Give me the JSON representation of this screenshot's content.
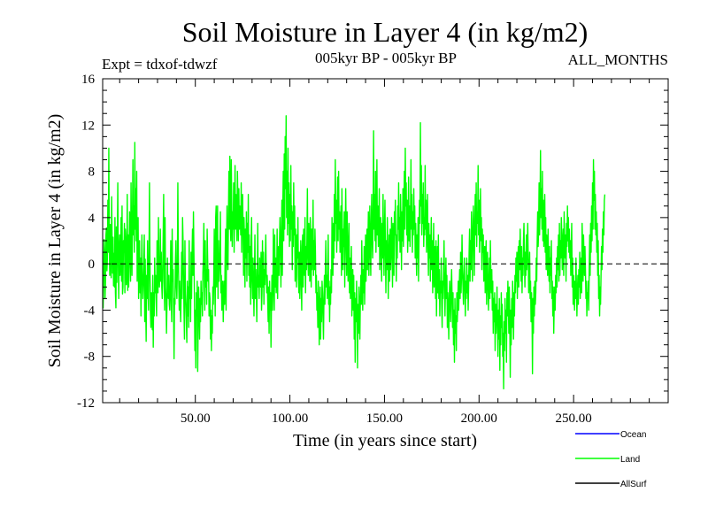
{
  "chart_data": {
    "type": "line",
    "title": "Soil Moisture in Layer 4 (in kg/m2)",
    "subtitle_left": "Expt = tdxof-tdwzf",
    "subtitle_center": "005kyr BP - 005kyr BP",
    "subtitle_right": "ALL_MONTHS",
    "xlabel": "Time (in years since start)",
    "ylabel": "Soil Moisture in Layer 4 (in kg/m2)",
    "xlim": [
      1,
      300
    ],
    "ylim": [
      -12,
      16
    ],
    "x_ticks": [
      50,
      100,
      150,
      200,
      250
    ],
    "x_tick_labels": [
      "50.00",
      "100.00",
      "150.00",
      "200.00",
      "250.00"
    ],
    "y_ticks": [
      -12,
      -8,
      -4,
      0,
      4,
      8,
      12,
      16
    ],
    "y_tick_labels": [
      "-12",
      "-8",
      "-4",
      "0",
      "4",
      "8",
      "12",
      "16"
    ],
    "zero_line": "dashed",
    "grid": false,
    "legend_position": "bottom-right",
    "series": [
      {
        "name": "Ocean",
        "color": "#0000ff",
        "values": []
      },
      {
        "name": "Land",
        "color": "#00ff00",
        "x_start": 1,
        "x_step": 0.25,
        "values": [
          -2.0,
          -3.8,
          -1.0,
          2.1,
          1.2,
          -3.0,
          -1.5,
          2.5,
          3.1,
          -0.6,
          0.5,
          5.5,
          1.0,
          10.0,
          2.0,
          -1.0,
          3.4,
          1.5,
          -1.2,
          5.8,
          2.0,
          -0.8,
          2.3,
          -1.9,
          0.9,
          -2.0,
          4.0,
          -2.5,
          -3.8,
          3.2,
          -1.6,
          1.5,
          7.0,
          0.4,
          -3.0,
          1.5,
          2.5,
          -1.0,
          0.5,
          4.0,
          -1.5,
          5.0,
          -2.6,
          -2.0,
          2.0,
          1.0,
          3.5,
          -2.5,
          3.0,
          2.2,
          -1.8,
          -1.0,
          6.0,
          -2.3,
          2.5,
          -2.0,
          1.2,
          4.5,
          0.5,
          -1.5,
          7.0,
          2.0,
          -1.0,
          4.0,
          9.0,
          2.5,
          5.0,
          1.0,
          10.5,
          3.0,
          6.5,
          2.0,
          8.0,
          -1.5,
          3.0,
          4.0,
          -3.0,
          1.0,
          2.0,
          -2.5,
          0.5,
          -4.5,
          -1.0,
          2.5,
          -1.0,
          -3.0,
          -1.8,
          -0.4,
          2.5,
          -5.0,
          0.4,
          -3.5,
          -6.7,
          -1.0,
          -3.0,
          2.0,
          -2.0,
          -4.0,
          0.5,
          7.0,
          0.4,
          -4.0,
          -5.5,
          -2.5,
          -3.5,
          -5.7,
          -1.0,
          -7.2,
          -2.5,
          -4.5,
          0.5,
          -2.5,
          -1.0,
          -3.0,
          -4.5,
          2.0,
          -1.5,
          -2.5,
          4.0,
          -0.5,
          -2.0,
          -1.0,
          3.0,
          -1.5,
          1.0,
          -2.0,
          -3.0,
          -1.0,
          2.5,
          6.0,
          -1.5,
          -4.0,
          4.0,
          -2.0,
          -3.0,
          -6.0,
          -3.5,
          0.5,
          -2.5,
          -3.0,
          -1.0,
          -3.5,
          -4.0,
          -2.0,
          2.0,
          -3.0,
          -5.0,
          3.0,
          -1.5,
          -0.5,
          -4.0,
          -8.2,
          -3.0,
          -3.5,
          0.5,
          2.0,
          -2.0,
          -3.0,
          -0.5,
          7.0,
          1.0,
          -2.0,
          -4.0,
          -1.5,
          -3.5,
          -5.0,
          -2.5,
          1.0,
          -3.0,
          4.0,
          2.0,
          -1.0,
          -4.0,
          -6.5,
          2.0,
          -2.5,
          -3.5,
          -5.0,
          -6.8,
          -1.5,
          -4.5,
          -2.0,
          -5.5,
          2.0,
          -3.0,
          -1.5,
          -5.0,
          1.0,
          -3.0,
          0.8,
          3.0,
          -1.0,
          4.5,
          1.0,
          -2.5,
          -7.5,
          -4.0,
          -9.0,
          -2.5,
          -4.5,
          -1.5,
          -9.3,
          -5.0,
          -2.0,
          -4.0,
          -6.5,
          -3.0,
          -5.0,
          -1.5,
          -3.5,
          -2.5,
          -4.5,
          -0.8,
          0.5,
          3.5,
          -1.5,
          -4.0,
          2.0,
          -2.0,
          -0.5,
          -3.5,
          3.0,
          0.5,
          -1.5,
          -0.5,
          -4.5,
          -2.5,
          -3.0,
          -6.5,
          -4.0,
          -7.5,
          -4.5,
          -6.0,
          -2.0,
          -3.5,
          -1.2,
          3.0,
          -1.0,
          -4.5,
          4.0,
          5.0,
          -2.0,
          2.0,
          5.0,
          -3.0,
          2.0,
          -1.5,
          -0.5,
          1.0,
          4.5,
          -2.5,
          -1.0,
          -4.0,
          -2.5,
          -1.5,
          -5.0,
          -3.0,
          -1.5,
          -3.5,
          0.5,
          3.0,
          -4.0,
          1.5,
          5.0,
          0.5,
          -0.5,
          4.0,
          8.0,
          3.0,
          9.3,
          4.0,
          2.0,
          9.0,
          5.0,
          1.5,
          4.5,
          3.0,
          7.0,
          1.0,
          4.0,
          8.5,
          3.0,
          6.0,
          4.5,
          2.0,
          8.0,
          5.5,
          2.0,
          6.5,
          3.0,
          5.0,
          4.0,
          2.5,
          7.0,
          1.0,
          5.5,
          6.0,
          2.5,
          -1.0,
          4.0,
          2.0,
          -2.0,
          3.0,
          0.5,
          4.5,
          -1.5,
          3.5,
          1.0,
          6.0,
          -1.0,
          2.5,
          -2.0,
          1.5,
          -3.5,
          2.0,
          4.0,
          -1.5,
          -3.0,
          0.5,
          -2.0,
          -4.5,
          -1.0,
          2.5,
          -3.0,
          -0.5,
          -2.5,
          -5.0,
          -1.0,
          3.5,
          -2.0,
          -1.0,
          -3.0,
          0.5,
          -1.5,
          -2.0,
          1.0,
          -4.0,
          -2.5,
          2.0,
          -2.0,
          1.0,
          -3.5,
          -0.5,
          -1.8,
          0.5,
          2.5,
          -1.0,
          -2.5,
          -1.0,
          -3.0,
          -5.0,
          -2.0,
          -6.0,
          -1.5,
          -4.0,
          -2.5,
          -7.2,
          -3.5,
          -1.0,
          -4.0,
          -2.5,
          3.0,
          -1.0,
          -4.0,
          2.5,
          -2.0,
          0.5,
          -2.5,
          -1.5,
          3.0,
          -3.0,
          0.5,
          1.5,
          -1.0,
          2.0,
          4.0,
          1.5,
          -2.0,
          2.5,
          5.5,
          -1.0,
          5.0,
          8.0,
          2.0,
          9.5,
          3.0,
          11.0,
          6.5,
          12.8,
          4.0,
          8.0,
          2.5,
          10.0,
          3.5,
          7.0,
          1.5,
          6.0,
          2.0,
          8.5,
          3.0,
          5.0,
          -0.5,
          4.5,
          1.5,
          7.0,
          2.5,
          5.0,
          -1.5,
          3.0,
          1.0,
          -2.0,
          2.5,
          0.5,
          4.0,
          -1.0,
          -2.5,
          1.0,
          -3.0,
          -0.5,
          2.0,
          -1.5,
          -4.0,
          1.5,
          2.5,
          -2.0,
          3.0,
          0.5,
          -1.0,
          4.0,
          -2.5,
          1.5,
          -0.5,
          2.0,
          6.5,
          0.5,
          -1.0,
          3.5,
          1.0,
          -1.5,
          4.0,
          2.5,
          -2.0,
          3.0,
          -0.5,
          1.5,
          5.5,
          -1.0,
          2.0,
          -0.5,
          3.0,
          1.0,
          -2.5,
          -1.0,
          -4.0,
          -2.5,
          -5.5,
          -1.5,
          -3.0,
          -7.0,
          -4.0,
          -2.0,
          -6.5,
          -3.0,
          -5.0,
          -1.5,
          -2.5,
          -4.5,
          -6.5,
          -3.0,
          -1.0,
          -3.5,
          -0.5,
          2.0,
          -2.0,
          -1.0,
          -3.0,
          -0.5,
          2.5,
          -3.5,
          -1.5,
          -5.0,
          -2.0,
          -3.5,
          -0.5,
          -2.5,
          4.0,
          1.0,
          -1.0,
          3.5,
          0.5,
          6.0,
          2.0,
          9.0,
          3.5,
          5.5,
          1.0,
          4.0,
          7.5,
          2.0,
          8.0,
          3.0,
          4.5,
          1.0,
          3.0,
          5.0,
          -1.0,
          6.5,
          2.5,
          -0.5,
          3.0,
          1.5,
          4.5,
          -2.0,
          2.0,
          6.5,
          3.0,
          -1.0,
          4.5,
          2.0,
          -1.5,
          1.0,
          3.5,
          -2.5,
          0.5,
          -3.0,
          -1.0,
          1.5,
          -4.5,
          -2.0,
          -0.5,
          -4.0,
          -1.0,
          -6.5,
          -2.5,
          -8.5,
          -3.0,
          -5.0,
          -1.5,
          -4.5,
          -9.0,
          -3.5,
          -6.0,
          -2.0,
          -4.0,
          -6.5,
          -3.0,
          -1.0,
          -3.5,
          2.0,
          -1.5,
          -4.0,
          -0.5,
          -2.5,
          1.5,
          -3.5,
          -1.0,
          2.5,
          -1.5,
          0.5,
          3.0,
          -0.5,
          2.0,
          4.5,
          -1.0,
          1.5,
          5.0,
          1.0,
          -1.0,
          3.5,
          6.0,
          2.0,
          0.5,
          4.5,
          11.5,
          3.0,
          6.0,
          2.0,
          8.0,
          1.0,
          4.0,
          9.0,
          2.5,
          5.0,
          1.5,
          3.0,
          6.5,
          -0.5,
          2.5,
          4.0,
          1.0,
          -1.5,
          3.5,
          0.5,
          6.0,
          2.0,
          -1.0,
          3.0,
          5.5,
          1.0,
          -2.5,
          2.0,
          -0.5,
          4.0,
          1.5,
          -3.0,
          0.5,
          2.5,
          -1.5,
          3.0,
          -0.5,
          1.0,
          4.0,
          1.5,
          -2.0,
          3.5,
          0.5,
          -1.0,
          4.5,
          2.5,
          5.5,
          1.5,
          -1.5,
          2.5,
          0.5,
          5.0,
          3.0,
          7.0,
          2.0,
          4.0,
          1.0,
          6.0,
          3.5,
          -0.5,
          4.5,
          2.0,
          6.5,
          1.5,
          4.0,
          8.0,
          3.0,
          10.0,
          5.0,
          7.0,
          2.5,
          5.5,
          1.0,
          3.0,
          7.5,
          2.0,
          5.0,
          1.5,
          4.0,
          9.0,
          3.0,
          6.0,
          1.0,
          4.5,
          2.5,
          6.5,
          3.0,
          5.0,
          0.5,
          3.5,
          1.5,
          -1.0,
          2.5,
          0.5,
          4.0,
          -1.5,
          2.0,
          5.5,
          3.5,
          12.2,
          5.0,
          8.5,
          2.5,
          6.0,
          3.5,
          7.0,
          1.5,
          4.0,
          2.5,
          8.5,
          3.0,
          5.5,
          1.0,
          3.0,
          6.0,
          1.5,
          -1.0,
          3.5,
          0.5,
          2.5,
          -1.5,
          1.5,
          4.0,
          -0.5,
          2.0,
          -2.5,
          0.5,
          3.5,
          -2.0,
          -0.5,
          1.5,
          -3.0,
          2.0,
          -4.5,
          -1.0,
          1.5,
          -2.5,
          2.5,
          -3.0,
          -0.5,
          -4.5,
          -1.5,
          -2.5,
          0.5,
          -3.5,
          -5.5,
          -1.5,
          -3.0,
          -0.5,
          2.0,
          -1.5,
          -4.5,
          -2.0,
          0.5,
          -3.0,
          -1.0,
          -5.5,
          -2.5,
          -4.0,
          -6.5,
          -3.0,
          -1.5,
          -3.5,
          -5.0,
          -2.0,
          -0.5,
          -3.0,
          -5.5,
          -2.5,
          -7.0,
          -4.0,
          -8.5,
          -3.0,
          -6.0,
          -4.5,
          -7.5,
          -2.5,
          -5.0,
          -3.5,
          -1.5,
          -4.0,
          -2.0,
          -0.5,
          -3.0,
          1.0,
          -2.5,
          -1.0,
          2.5,
          -0.5,
          -2.0,
          -3.5,
          -1.0,
          0.5,
          -2.0,
          -4.5,
          -1.5,
          -3.0,
          0.5,
          -2.5,
          -1.0,
          -4.0,
          -2.0,
          1.0,
          3.0,
          -1.5,
          2.0,
          -0.5,
          4.5,
          1.5,
          -1.5,
          3.0,
          5.0,
          2.0,
          -1.0,
          3.5,
          6.0,
          2.5,
          7.0,
          1.5,
          4.5,
          3.5,
          8.5,
          2.5,
          5.5,
          1.0,
          3.5,
          6.5,
          2.0,
          4.0,
          -0.5,
          3.0,
          1.0,
          2.5,
          -1.5,
          -0.5,
          1.5,
          -2.5,
          0.5,
          2.0,
          -3.5,
          -1.0,
          1.0,
          -2.0,
          -4.0,
          -1.5,
          0.5,
          -3.0,
          2.0,
          -1.0,
          -2.5,
          -0.5,
          -4.0,
          -1.5,
          -6.0,
          -3.0,
          -5.0,
          -2.5,
          -7.5,
          -3.5,
          -6.0,
          -4.5,
          -2.0,
          -5.0,
          -8.0,
          -4.0,
          -6.5,
          -3.0,
          -9.2,
          -4.5,
          -7.0,
          -2.5,
          -5.5,
          -3.5,
          -8.0,
          -6.0,
          -10.8,
          -5.0,
          -7.5,
          -3.0,
          -6.0,
          -4.0,
          -8.5,
          -2.5,
          -4.5,
          -1.5,
          -3.5,
          -6.0,
          -2.0,
          -5.0,
          -9.8,
          -4.0,
          -7.0,
          -3.0,
          -5.5,
          -1.5,
          -3.0,
          -6.5,
          -2.5,
          -4.5,
          -1.0,
          -2.5,
          0.5,
          -1.5,
          1.0,
          -3.0,
          -0.5,
          1.5,
          -2.0,
          2.0,
          -0.5,
          3.0,
          0.5,
          -1.5,
          1.5,
          -2.5,
          0.5,
          -1.0,
          2.0,
          3.5,
          0.5,
          -2.0,
          1.0,
          -1.0,
          2.5,
          -0.5,
          1.5,
          3.5,
          0.5,
          -2.5,
          -1.0,
          1.0,
          -3.0,
          -1.5,
          -5.0,
          -2.5,
          -4.0,
          -9.5,
          -3.0,
          -6.0,
          -2.0,
          -4.5,
          -1.5,
          -3.5,
          -2.5,
          0.5,
          -1.5,
          2.0,
          4.5,
          1.5,
          3.0,
          7.0,
          2.5,
          5.0,
          9.8,
          4.0,
          6.5,
          3.0,
          8.0,
          2.0,
          5.5,
          1.5,
          3.5,
          6.0,
          1.0,
          4.0,
          -0.5,
          2.5,
          1.5,
          -1.0,
          3.0,
          0.5,
          -1.5,
          1.5,
          -2.5,
          0.5,
          -1.0,
          2.0,
          -3.0,
          -1.5,
          -4.5,
          -2.0,
          -6.0,
          -3.5,
          -2.0,
          -4.0,
          -1.0,
          -2.5,
          0.5,
          -2.0,
          1.5,
          -0.5,
          2.5,
          -1.5,
          3.5,
          -1.0,
          2.0,
          0.5,
          4.0,
          2.5,
          -0.5,
          1.5,
          3.0,
          -1.0,
          4.5,
          2.0,
          0.5,
          2.5,
          -1.5,
          3.5,
          1.5,
          5.0,
          2.0,
          4.0,
          1.0,
          3.0,
          0.5,
          2.0,
          -1.0,
          1.5,
          3.5,
          -2.0,
          0.5,
          -3.5,
          -1.0,
          -2.5,
          -4.0,
          -1.5,
          -3.0,
          0.5,
          -2.0,
          -4.5,
          -2.5,
          -1.0,
          -3.5,
          -0.5,
          -2.0,
          1.0,
          -3.0,
          -1.5,
          0.5,
          -2.5,
          3.5,
          1.5,
          -1.5,
          2.5,
          0.5,
          -1.0,
          1.5,
          -0.5,
          -3.0,
          -1.5,
          -4.5,
          -2.5,
          -3.0,
          -1.5,
          -4.0,
          -0.5,
          2.5,
          -1.0,
          3.5,
          1.0,
          5.0,
          2.0,
          7.0,
          3.0,
          9.0,
          5.5,
          8.0,
          3.0,
          6.0,
          2.5,
          4.5,
          1.0,
          3.5,
          -1.0,
          2.0,
          -3.0,
          -1.0,
          -4.5,
          -2.0,
          -3.5,
          -1.0,
          1.5,
          -0.5,
          3.0,
          1.0,
          4.5,
          2.5,
          5.5,
          6.0
        ]
      },
      {
        "name": "AllSurf",
        "color": "#000000",
        "values": []
      }
    ]
  }
}
